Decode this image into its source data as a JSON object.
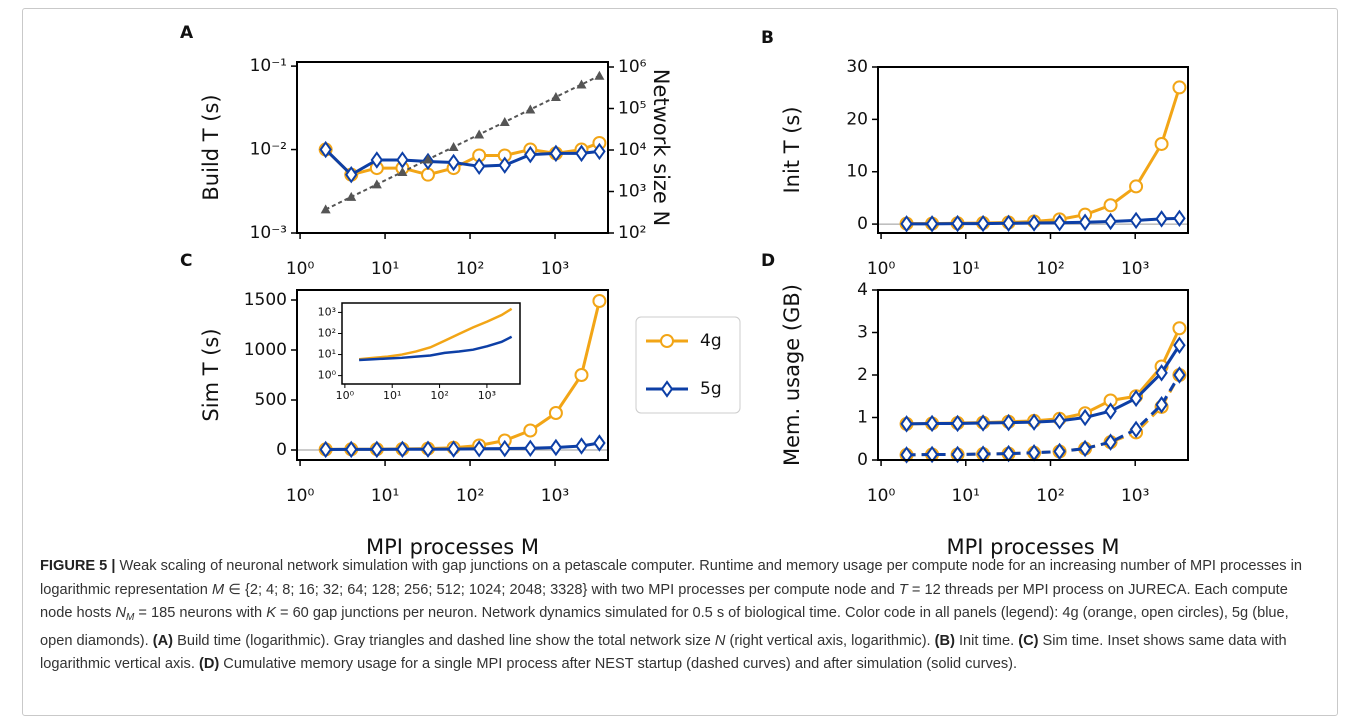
{
  "chart_data": [
    {
      "type": "line",
      "panel_label": "A",
      "ylabel": "Build T (s)",
      "y2label": "Network size N",
      "x": [
        2,
        4,
        8,
        16,
        32,
        64,
        128,
        256,
        512,
        1024,
        2048,
        3328
      ],
      "xscale": "log",
      "xlim": [
        0.92,
        4200
      ],
      "xticks": [
        {
          "value": 1,
          "label": "10⁰"
        },
        {
          "value": 10,
          "label": "10¹"
        },
        {
          "value": 100,
          "label": "10²"
        },
        {
          "value": 1000,
          "label": "10³"
        }
      ],
      "yscale": "log",
      "ylim": [
        0.001,
        0.112
      ],
      "yticks": [
        {
          "value": 0.001,
          "label": "10⁻³"
        },
        {
          "value": 0.01,
          "label": "10⁻²"
        },
        {
          "value": 0.1,
          "label": "10⁻¹"
        }
      ],
      "y2scale": "log",
      "y2lim": [
        100,
        1320000
      ],
      "y2ticks": [
        {
          "value": 100,
          "label": "10²"
        },
        {
          "value": 1000,
          "label": "10³"
        },
        {
          "value": 10000,
          "label": "10⁴"
        },
        {
          "value": 100000,
          "label": "10⁵"
        },
        {
          "value": 1000000,
          "label": "10⁶"
        }
      ],
      "series": [
        {
          "color": "#f2a516",
          "marker": "circle",
          "values": [
            0.01,
            0.005,
            0.006,
            0.006,
            0.005,
            0.006,
            0.0085,
            0.0085,
            0.01,
            0.009,
            0.01,
            0.012
          ]
        },
        {
          "color": "#0d3fa6",
          "marker": "diamond",
          "values": [
            0.01,
            0.005,
            0.0075,
            0.0075,
            0.0072,
            0.007,
            0.0063,
            0.0065,
            0.0087,
            0.009,
            0.009,
            0.0095
          ]
        },
        {
          "color": "#555555",
          "marker": "triangle",
          "dash": true,
          "axis": "y2",
          "values": [
            370,
            740,
            1480,
            2960,
            5920,
            11840,
            23680,
            47360,
            94720,
            189440,
            378880,
            615680
          ]
        }
      ]
    },
    {
      "type": "line",
      "panel_label": "B",
      "ylabel": "Init T (s)",
      "zero_line": true,
      "x": [
        2,
        4,
        8,
        16,
        32,
        64,
        128,
        256,
        512,
        1024,
        2048,
        3328
      ],
      "xscale": "log",
      "xlim": [
        0.92,
        4200
      ],
      "xticks": [
        {
          "value": 1,
          "label": "10⁰"
        },
        {
          "value": 10,
          "label": "10¹"
        },
        {
          "value": 100,
          "label": "10²"
        },
        {
          "value": 1000,
          "label": "10³"
        }
      ],
      "yscale": "linear",
      "ylim": [
        -1.7,
        30
      ],
      "yticks": [
        0,
        10,
        20,
        30
      ],
      "series": [
        {
          "color": "#f2a516",
          "marker": "circle",
          "values": [
            0.1,
            0.1,
            0.15,
            0.2,
            0.3,
            0.5,
            0.9,
            1.8,
            3.6,
            7.2,
            15.3,
            26.1
          ]
        },
        {
          "color": "#0d3fa6",
          "marker": "diamond",
          "values": [
            0.05,
            0.05,
            0.1,
            0.1,
            0.15,
            0.2,
            0.25,
            0.35,
            0.5,
            0.7,
            1.0,
            1.1
          ]
        }
      ]
    },
    {
      "type": "line",
      "panel_label": "C",
      "ylabel": "Sim T (s)",
      "xlabel": "MPI processes M",
      "zero_line": true,
      "x": [
        2,
        4,
        8,
        16,
        32,
        64,
        128,
        256,
        512,
        1024,
        2048,
        3328
      ],
      "xscale": "log",
      "xlim": [
        0.92,
        4200
      ],
      "xticks": [
        {
          "value": 1,
          "label": "10⁰"
        },
        {
          "value": 10,
          "label": "10¹"
        },
        {
          "value": 100,
          "label": "10²"
        },
        {
          "value": 1000,
          "label": "10³"
        }
      ],
      "yscale": "linear",
      "ylim": [
        -100,
        1600
      ],
      "yticks": [
        0,
        500,
        1000,
        1500
      ],
      "series": [
        {
          "name": "4g",
          "color": "#f2a516",
          "marker": "circle",
          "values": [
            6,
            7,
            8,
            10,
            14,
            22,
            45,
            95,
            195,
            370,
            750,
            1490
          ]
        },
        {
          "name": "5g",
          "color": "#0d3fa6",
          "marker": "diamond",
          "values": [
            5.5,
            6,
            6.5,
            7,
            8,
            9,
            12,
            14,
            17,
            25,
            40,
            70
          ]
        }
      ]
    },
    {
      "type": "line",
      "x": [
        2,
        4,
        8,
        16,
        32,
        64,
        128,
        256,
        512,
        1024,
        2048,
        3328
      ],
      "xscale": "log",
      "xlim": [
        0.87,
        5000
      ],
      "xticks": [
        {
          "value": 1,
          "label": "10⁰"
        },
        {
          "value": 10,
          "label": "10¹"
        },
        {
          "value": 100,
          "label": "10²"
        },
        {
          "value": 1000,
          "label": "10³"
        }
      ],
      "yscale": "log",
      "ylim": [
        0.4,
        2800
      ],
      "yticks": [
        {
          "value": 1,
          "label": "10⁰"
        },
        {
          "value": 10,
          "label": "10¹"
        },
        {
          "value": 100,
          "label": "10²"
        },
        {
          "value": 1000,
          "label": "10³"
        }
      ],
      "series": [
        {
          "color": "#f2a516",
          "values": [
            6,
            7,
            8,
            10,
            14,
            22,
            45,
            95,
            195,
            370,
            750,
            1490
          ]
        },
        {
          "color": "#0d3fa6",
          "values": [
            5.5,
            6,
            6.5,
            7,
            8,
            9,
            12,
            14,
            17,
            25,
            40,
            70
          ]
        }
      ]
    },
    {
      "type": "line",
      "panel_label": "D",
      "ylabel": "Mem. usage (GB)",
      "xlabel": "MPI processes M",
      "x": [
        2,
        4,
        8,
        16,
        32,
        64,
        128,
        256,
        512,
        1024,
        2048,
        3328
      ],
      "xscale": "log",
      "xlim": [
        0.92,
        4200
      ],
      "xticks": [
        {
          "value": 1,
          "label": "10⁰"
        },
        {
          "value": 10,
          "label": "10¹"
        },
        {
          "value": 100,
          "label": "10²"
        },
        {
          "value": 1000,
          "label": "10³"
        }
      ],
      "yscale": "linear",
      "ylim": [
        0,
        4
      ],
      "yticks": [
        0,
        1,
        2,
        3,
        4
      ],
      "series": [
        {
          "color": "#f2a516",
          "marker": "circle",
          "dash": true,
          "values": [
            0.12,
            0.13,
            0.13,
            0.14,
            0.15,
            0.17,
            0.2,
            0.27,
            0.42,
            0.65,
            1.25,
            2.0
          ]
        },
        {
          "color": "#0d3fa6",
          "marker": "diamond",
          "dash": true,
          "values": [
            0.12,
            0.13,
            0.13,
            0.14,
            0.15,
            0.17,
            0.2,
            0.27,
            0.42,
            0.72,
            1.3,
            2.0
          ]
        },
        {
          "color": "#f2a516",
          "marker": "circle",
          "values": [
            0.85,
            0.86,
            0.87,
            0.88,
            0.9,
            0.92,
            0.97,
            1.1,
            1.4,
            1.5,
            2.2,
            3.1
          ]
        },
        {
          "color": "#0d3fa6",
          "marker": "diamond",
          "values": [
            0.85,
            0.86,
            0.86,
            0.87,
            0.88,
            0.89,
            0.92,
            1.0,
            1.15,
            1.45,
            2.05,
            2.7
          ]
        }
      ]
    }
  ],
  "caption": {
    "segments": [
      {
        "text": "FIGURE 5 |",
        "style": "bold"
      },
      {
        "text": " Weak scaling of neuronal network simulation with gap junctions on a petascale computer. Runtime and memory usage per compute node for an increasing number of MPI processes in logarithmic representation "
      },
      {
        "text": "M",
        "style": "italic"
      },
      {
        "text": " ∈ {2; 4; 8; 16; 32; 64; 128; 256; 512; 1024; 2048; 3328} with two MPI processes per compute node and "
      },
      {
        "text": "T",
        "style": "italic"
      },
      {
        "text": " = 12 threads per MPI process on JURECA. Each compute node hosts "
      },
      {
        "text": "N",
        "style": "italic"
      },
      {
        "text": "M",
        "style": "sub"
      },
      {
        "text": " = 185 neurons with "
      },
      {
        "text": "K",
        "style": "italic"
      },
      {
        "text": " = 60 gap junctions per neuron. Network dynamics simulated for 0.5 s of biological time. Color code in all panels (legend): 4g (orange, open circles), 5g (blue, open diamonds). "
      },
      {
        "text": "(A)",
        "style": "bold"
      },
      {
        "text": " Build time (logarithmic). Gray triangles and dashed line show the total network size "
      },
      {
        "text": "N",
        "style": "italic"
      },
      {
        "text": " (right vertical axis, logarithmic). "
      },
      {
        "text": "(B)",
        "style": "bold"
      },
      {
        "text": " Init time. "
      },
      {
        "text": "(C)",
        "style": "bold"
      },
      {
        "text": " Sim time. Inset shows same data with logarithmic vertical axis. "
      },
      {
        "text": "(D)",
        "style": "bold"
      },
      {
        "text": " Cumulative memory usage for a single MPI process after NEST startup (dashed curves) and after simulation (solid curves)."
      }
    ]
  }
}
